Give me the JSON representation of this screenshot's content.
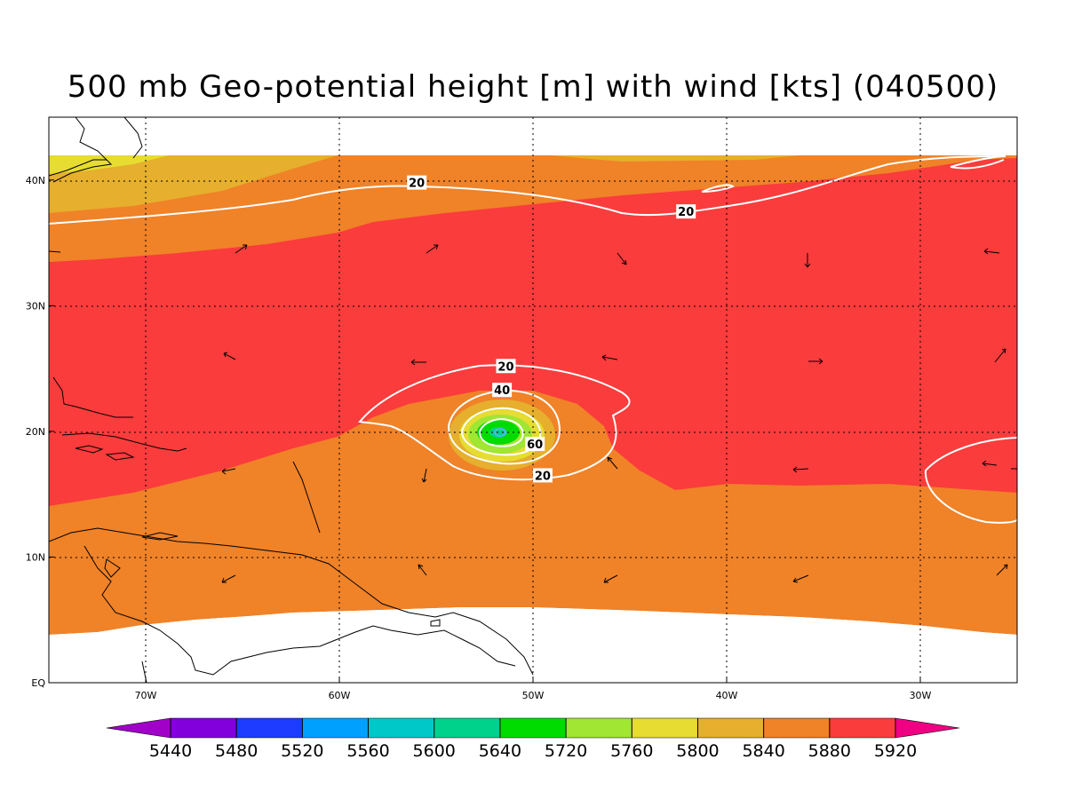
{
  "title": "500 mb Geo-potential height [m] with wind [kts] (040500)",
  "map": {
    "lon_range": [
      -75,
      -25
    ],
    "lat_range": [
      0,
      45
    ],
    "lon_ticks": [
      {
        "lon": -70,
        "label": "70W"
      },
      {
        "lon": -60,
        "label": "60W"
      },
      {
        "lon": -50,
        "label": "50W"
      },
      {
        "lon": -40,
        "label": "40W"
      },
      {
        "lon": -30,
        "label": "30W"
      }
    ],
    "lat_ticks": [
      {
        "lat": 0,
        "label": "EQ"
      },
      {
        "lat": 10,
        "label": "10N"
      },
      {
        "lat": 20,
        "label": "20N"
      },
      {
        "lat": 30,
        "label": "30N"
      },
      {
        "lat": 40,
        "label": "40N"
      }
    ],
    "grid": true,
    "wind_contour_labels": [
      {
        "value": "20",
        "lon": -56,
        "lat": 39.8
      },
      {
        "value": "20",
        "lon": -42.1,
        "lat": 37.5
      },
      {
        "value": "20",
        "lon": -51.4,
        "lat": 25.2
      },
      {
        "value": "40",
        "lon": -51.6,
        "lat": 23.3
      },
      {
        "value": "60",
        "lon": -49.9,
        "lat": 19.0
      },
      {
        "value": "20",
        "lon": -49.5,
        "lat": 16.5
      }
    ]
  },
  "colorbar": {
    "levels": [
      "5440",
      "5480",
      "5520",
      "5560",
      "5600",
      "5640",
      "5720",
      "5760",
      "5800",
      "5840",
      "5880",
      "5920"
    ],
    "colors": [
      "#a000c8",
      "#8200dc",
      "#1e3cff",
      "#00a0ff",
      "#00c8c8",
      "#00d28c",
      "#00dc00",
      "#a0e632",
      "#e6dc32",
      "#e6af2d",
      "#f08228",
      "#fa3c3c",
      "#f00082"
    ]
  }
}
